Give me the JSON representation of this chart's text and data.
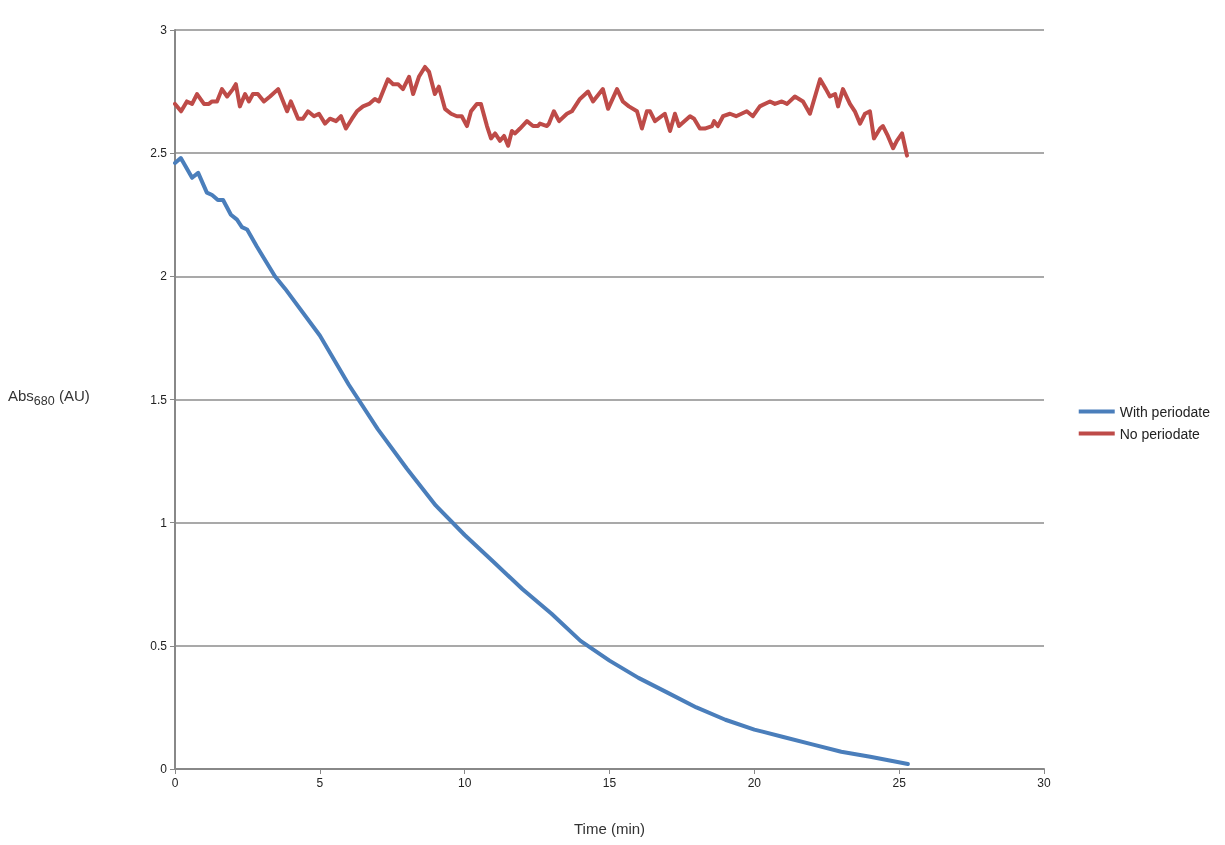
{
  "chart_data": {
    "type": "line",
    "xlabel": "Time (min)",
    "ylabel": "Abs$_{680}$ (AU)",
    "xlim": [
      0,
      30
    ],
    "xticks": [
      0,
      5,
      10,
      15,
      20,
      25,
      30
    ],
    "ylim": [
      0,
      3
    ],
    "yticks": [
      0,
      0.5,
      1,
      1.5,
      2,
      2.5,
      3
    ],
    "grid": "y",
    "legend": "right",
    "marker": "none",
    "line_style": "solid",
    "series": [
      {
        "name": "With periodate",
        "color": "#4a7ebb",
        "x": [
          0,
          0.2,
          0.59,
          0.8,
          1.1,
          1.28,
          1.48,
          1.66,
          1.93,
          2.14,
          2.31,
          2.49,
          2.83,
          3.45,
          3.8,
          5,
          6,
          7,
          8,
          9,
          10,
          11,
          12,
          13,
          14,
          15,
          16,
          17,
          18,
          19,
          20,
          21,
          22,
          23,
          24,
          25.3
        ],
        "values": [
          2.46,
          2.48,
          2.4,
          2.42,
          2.34,
          2.33,
          2.31,
          2.31,
          2.25,
          2.23,
          2.2,
          2.19,
          2.12,
          2.0,
          1.95,
          1.76,
          1.56,
          1.38,
          1.22,
          1.07,
          0.95,
          0.84,
          0.73,
          0.63,
          0.52,
          0.44,
          0.37,
          0.31,
          0.25,
          0.2,
          0.16,
          0.13,
          0.1,
          0.07,
          0.05,
          0.02
        ]
      },
      {
        "name": "No periodate",
        "color": "#be4b48",
        "x": [
          0,
          0.21,
          0.41,
          0.59,
          0.76,
          1.0,
          1.17,
          1.28,
          1.45,
          1.62,
          1.8,
          2.0,
          2.1,
          2.24,
          2.42,
          2.55,
          2.69,
          2.86,
          3.07,
          3.28,
          3.56,
          3.87,
          4.0,
          4.25,
          4.42,
          4.59,
          4.8,
          4.97,
          5.18,
          5.35,
          5.56,
          5.73,
          5.9,
          6.11,
          6.28,
          6.49,
          6.7,
          6.9,
          7.04,
          7.35,
          7.53,
          7.7,
          7.87,
          8.08,
          8.22,
          8.42,
          8.63,
          8.77,
          8.97,
          9.11,
          9.32,
          9.53,
          9.73,
          9.9,
          10.08,
          10.22,
          10.42,
          10.56,
          10.77,
          10.91,
          11.05,
          11.22,
          11.36,
          11.5,
          11.63,
          11.74,
          11.91,
          12.15,
          12.36,
          12.53,
          12.6,
          12.84,
          12.91,
          13.08,
          13.26,
          13.53,
          13.7,
          13.98,
          14.26,
          14.43,
          14.77,
          14.95,
          15.26,
          15.46,
          15.67,
          15.95,
          16.12,
          16.29,
          16.4,
          16.57,
          16.91,
          17.09,
          17.26,
          17.4,
          17.78,
          17.92,
          18.12,
          18.29,
          18.54,
          18.61,
          18.74,
          18.92,
          19.16,
          19.37,
          19.74,
          19.95,
          20.19,
          20.54,
          20.71,
          20.95,
          21.13,
          21.4,
          21.68,
          21.92,
          22.27,
          22.47,
          22.61,
          22.79,
          22.89,
          23.06,
          23.3,
          23.47,
          23.65,
          23.82,
          23.99,
          24.13,
          24.34,
          24.44,
          24.61,
          24.79,
          24.92,
          25.1,
          25.27
        ],
        "values": [
          2.7,
          2.67,
          2.71,
          2.7,
          2.74,
          2.7,
          2.7,
          2.71,
          2.71,
          2.76,
          2.73,
          2.76,
          2.78,
          2.69,
          2.74,
          2.71,
          2.74,
          2.74,
          2.71,
          2.73,
          2.76,
          2.67,
          2.71,
          2.64,
          2.64,
          2.67,
          2.65,
          2.66,
          2.62,
          2.64,
          2.63,
          2.65,
          2.6,
          2.64,
          2.67,
          2.69,
          2.7,
          2.72,
          2.71,
          2.8,
          2.78,
          2.78,
          2.76,
          2.81,
          2.74,
          2.81,
          2.85,
          2.83,
          2.74,
          2.77,
          2.68,
          2.66,
          2.65,
          2.65,
          2.61,
          2.67,
          2.7,
          2.7,
          2.61,
          2.56,
          2.58,
          2.55,
          2.57,
          2.53,
          2.59,
          2.58,
          2.6,
          2.63,
          2.61,
          2.61,
          2.62,
          2.61,
          2.62,
          2.67,
          2.63,
          2.66,
          2.67,
          2.72,
          2.75,
          2.71,
          2.76,
          2.68,
          2.76,
          2.71,
          2.69,
          2.67,
          2.6,
          2.67,
          2.67,
          2.63,
          2.66,
          2.59,
          2.66,
          2.61,
          2.65,
          2.64,
          2.6,
          2.6,
          2.61,
          2.63,
          2.61,
          2.65,
          2.66,
          2.65,
          2.67,
          2.65,
          2.69,
          2.71,
          2.7,
          2.71,
          2.7,
          2.73,
          2.71,
          2.66,
          2.8,
          2.76,
          2.73,
          2.74,
          2.69,
          2.76,
          2.7,
          2.67,
          2.62,
          2.66,
          2.67,
          2.56,
          2.6,
          2.61,
          2.57,
          2.52,
          2.55,
          2.58,
          2.49
        ]
      }
    ]
  }
}
